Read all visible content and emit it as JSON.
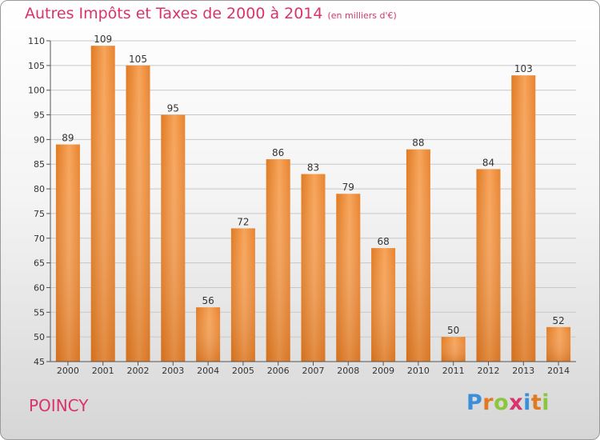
{
  "chart_data": {
    "type": "bar",
    "title": "Autres Impôts et Taxes de 2000 à 2014",
    "unit": "(en milliers d'€)",
    "categories": [
      "2000",
      "2001",
      "2002",
      "2003",
      "2004",
      "2005",
      "2006",
      "2007",
      "2008",
      "2009",
      "2010",
      "2011",
      "2012",
      "2013",
      "2014"
    ],
    "values": [
      89,
      109,
      105,
      95,
      56,
      72,
      86,
      83,
      79,
      68,
      88,
      50,
      84,
      103,
      52
    ],
    "ylim": [
      45,
      110
    ],
    "yticks": [
      45,
      50,
      55,
      60,
      65,
      70,
      75,
      80,
      85,
      90,
      95,
      100,
      105,
      110
    ],
    "grid": true,
    "bar_color": "#f0963e",
    "bar_color_dark": "#d8731e"
  },
  "location": "POINCY",
  "brand": {
    "letters": [
      "P",
      "r",
      "o",
      "x",
      "i",
      "t",
      "i"
    ]
  }
}
